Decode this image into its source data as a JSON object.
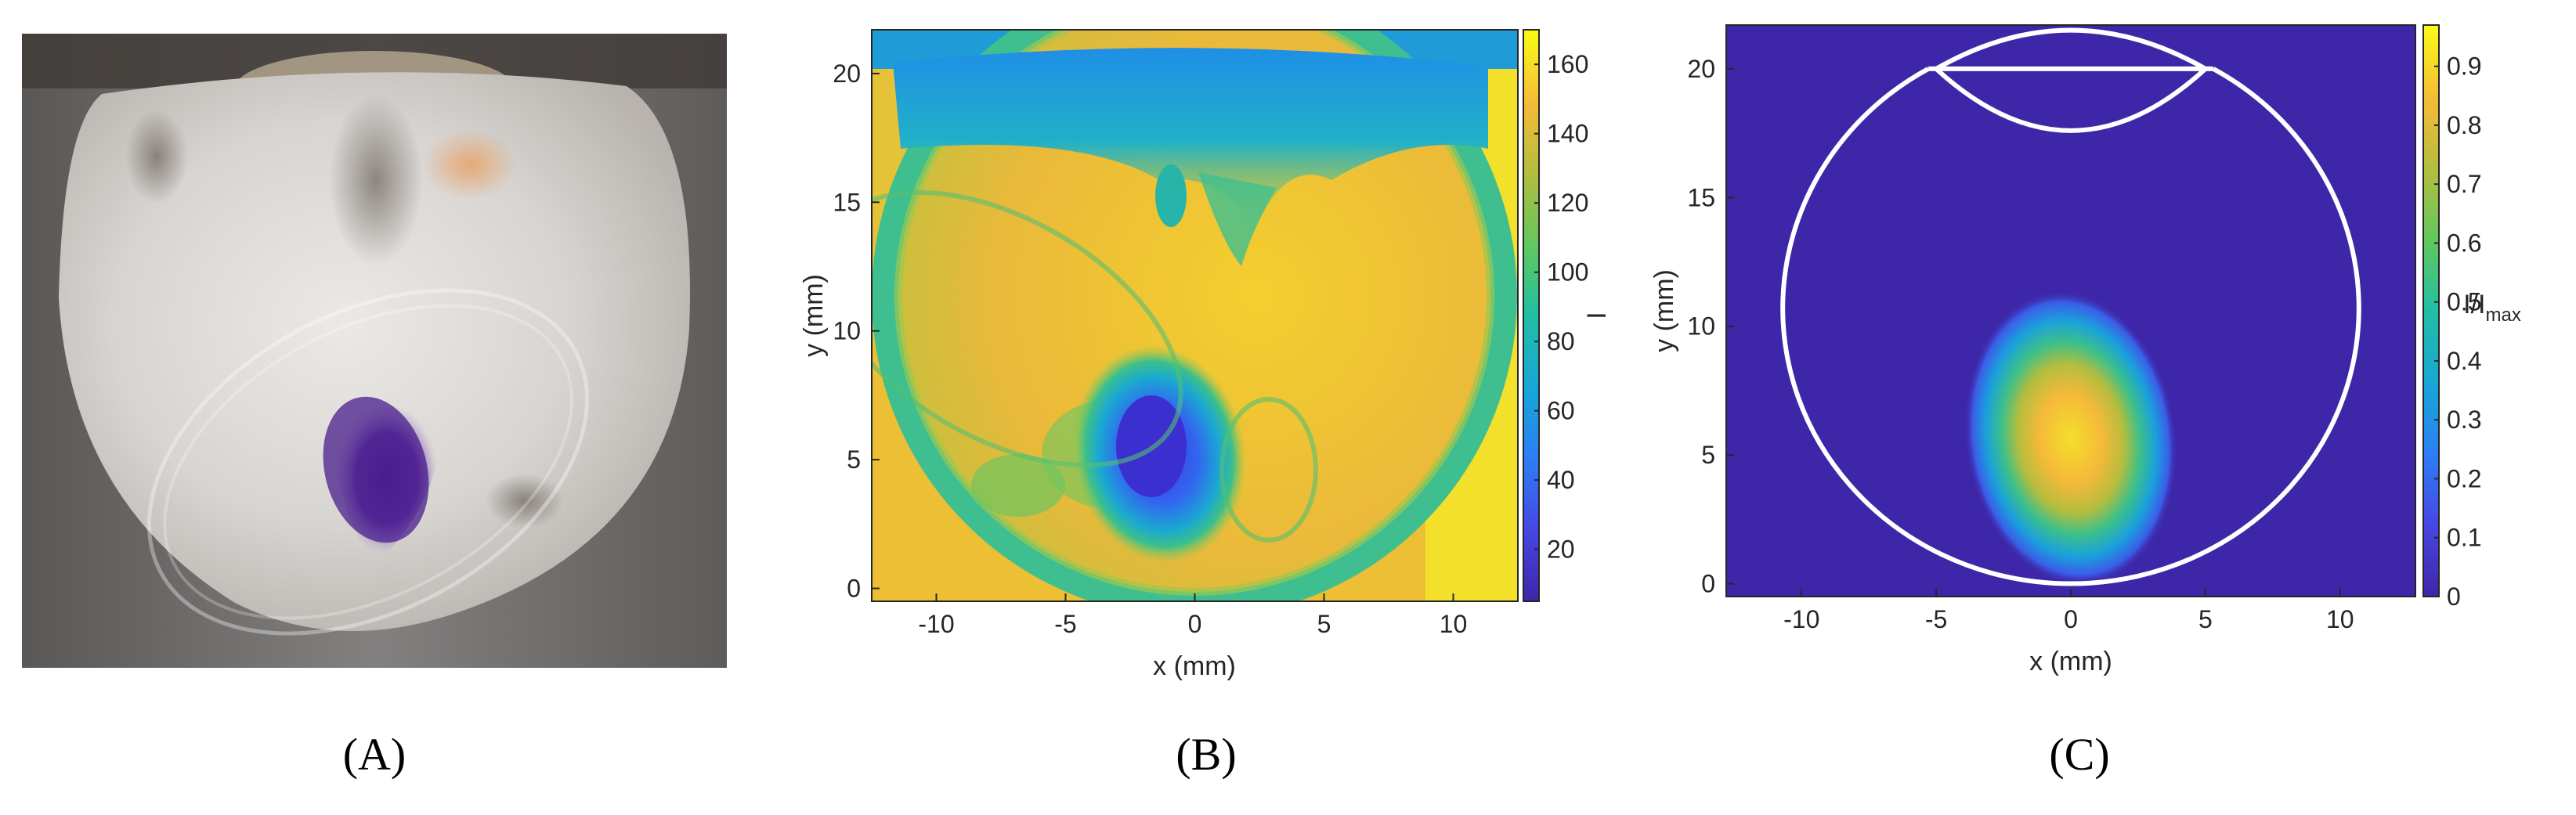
{
  "panels": [
    {
      "id": "A",
      "label": "(A)",
      "kind": "photograph",
      "description_colors": {
        "background": "#6e6c68",
        "bead": "#d8d6d3",
        "dye": "#5a2d9a"
      }
    },
    {
      "id": "B",
      "label": "(B)"
    },
    {
      "id": "C",
      "label": "(C)"
    }
  ],
  "chart_data": [
    {
      "type": "heatmap",
      "panel": "B",
      "title": "",
      "xlabel": "x (mm)",
      "ylabel": "y (mm)",
      "xlim": [
        -12.5,
        12.5
      ],
      "ylim": [
        -0.5,
        21.7
      ],
      "xticks": [
        -10,
        -5,
        0,
        5,
        10
      ],
      "yticks": [
        0,
        5,
        10,
        15,
        20
      ],
      "colorbar": {
        "label": "I",
        "min": 5,
        "max": 170,
        "ticks": [
          20,
          40,
          60,
          80,
          100,
          120,
          140,
          160
        ],
        "colormap": "parula"
      },
      "features": {
        "background_level": 150,
        "bead_level": 140,
        "rim_level": 95,
        "dye_spot": {
          "x": -1,
          "y": 6,
          "level": 30
        }
      },
      "grid": false
    },
    {
      "type": "heatmap",
      "panel": "C",
      "title": "",
      "xlabel": "x (mm)",
      "ylabel": "y (mm)",
      "xlim": [
        -12.8,
        12.8
      ],
      "ylim": [
        -0.5,
        21.7
      ],
      "xticks": [
        -10,
        -5,
        0,
        5,
        10
      ],
      "yticks": [
        0,
        5,
        10,
        15,
        20
      ],
      "colorbar": {
        "label": "I/I",
        "label_sub": "max",
        "min": 0,
        "max": 0.97,
        "ticks": [
          0,
          0.1,
          0.2,
          0.3,
          0.4,
          0.5,
          0.6,
          0.7,
          0.8,
          0.9
        ],
        "colormap": "parula"
      },
      "features": {
        "background_level": 0,
        "peak": {
          "x": -0.5,
          "y": 6,
          "level": 0.85
        },
        "outline": {
          "circle_center": [
            0,
            10.7
          ],
          "circle_radius": 10.7,
          "chord_y": 20,
          "cap_x": [
            -5,
            5
          ],
          "cap_y": [
            17.6,
            21.5
          ]
        }
      },
      "grid": false
    }
  ]
}
